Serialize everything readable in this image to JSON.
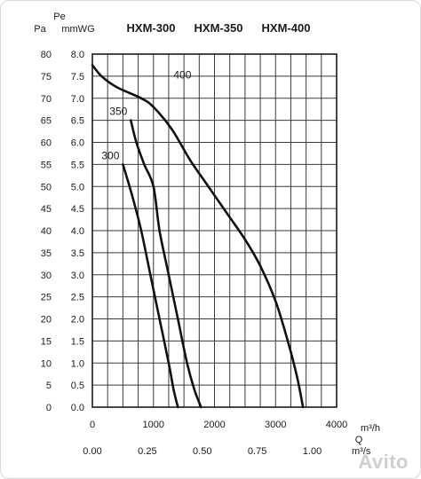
{
  "chart_data": {
    "type": "line",
    "title": "",
    "model_labels": [
      "HXM-300",
      "HXM-350",
      "HXM-400"
    ],
    "y_axes": {
      "pa_label": "Pa",
      "pe_label": "Pe",
      "mmwg_label": "mmWG",
      "pa_ticks": [
        0,
        5,
        10,
        15,
        20,
        25,
        30,
        35,
        40,
        45,
        50,
        55,
        60,
        65,
        70,
        75,
        80
      ],
      "mmwg_ticks": [
        "0.0",
        "0.5",
        "1.0",
        "1.5",
        "2.0",
        "2.5",
        "3.0",
        "3.5",
        "4.0",
        "4.5",
        "5.0",
        "5.5",
        "6.0",
        "6.5",
        "7.0",
        "7.5",
        "8.0"
      ],
      "ylim_mmwg": [
        0,
        8
      ]
    },
    "x_axes": {
      "m3h_ticks": [
        "0",
        "1000",
        "2000",
        "3000",
        "4000"
      ],
      "m3h_unit": "m³/h",
      "q_label": "Q",
      "m3s_ticks": [
        "0.00",
        "0.25",
        "0.50",
        "0.75",
        "1.00"
      ],
      "m3s_unit": "m³/s",
      "xlim_m3h": [
        0,
        4000
      ]
    },
    "grid": true,
    "series": [
      {
        "name": "300",
        "points": [
          [
            500,
            5.5
          ],
          [
            650,
            4.8
          ],
          [
            800,
            4.0
          ],
          [
            950,
            3.0
          ],
          [
            1100,
            2.0
          ],
          [
            1250,
            1.0
          ],
          [
            1330,
            0.4
          ],
          [
            1400,
            0.0
          ]
        ]
      },
      {
        "name": "350",
        "points": [
          [
            630,
            6.5
          ],
          [
            720,
            6.0
          ],
          [
            850,
            5.5
          ],
          [
            1000,
            5.0
          ],
          [
            1100,
            4.0
          ],
          [
            1250,
            3.0
          ],
          [
            1400,
            2.0
          ],
          [
            1550,
            1.0
          ],
          [
            1670,
            0.4
          ],
          [
            1780,
            0.0
          ]
        ]
      },
      {
        "name": "400",
        "points": [
          [
            0,
            7.75
          ],
          [
            150,
            7.5
          ],
          [
            400,
            7.25
          ],
          [
            800,
            7.0
          ],
          [
            1000,
            6.8
          ],
          [
            1300,
            6.3
          ],
          [
            1600,
            5.6
          ],
          [
            1900,
            5.0
          ],
          [
            2200,
            4.4
          ],
          [
            2500,
            3.8
          ],
          [
            2750,
            3.2
          ],
          [
            3000,
            2.4
          ],
          [
            3200,
            1.5
          ],
          [
            3350,
            0.7
          ],
          [
            3450,
            0.0
          ]
        ]
      }
    ]
  },
  "watermark": "Avito"
}
